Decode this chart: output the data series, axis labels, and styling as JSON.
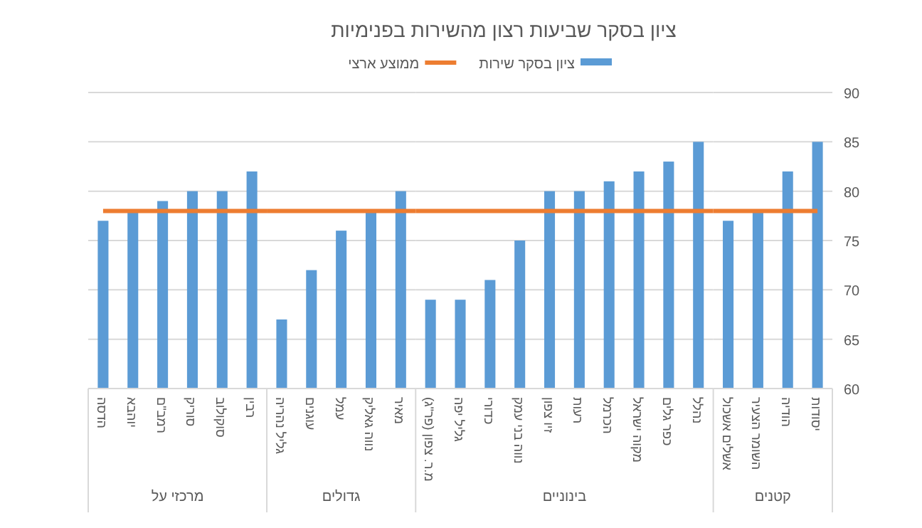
{
  "chart_data": [
    {
      "type": "bar",
      "xlabel": "מרכזי על",
      "grid": "y",
      "tick_labels": "x",
      "ylim": [
        60,
        90
      ],
      "yticks": [
        60,
        65,
        70,
        75,
        80,
        85,
        90
      ],
      "categories": [
        "הדסה",
        "יוהבא",
        "רמב\"ם",
        "סוריק",
        "סוקולוב",
        "רבין"
      ],
      "series": [
        {
          "color": "#5b9bd5",
          "values": [
            77,
            78,
            79,
            80,
            80,
            82
          ]
        }
      ],
      "ref_lines": [
        {
          "axis": "y",
          "value": 78,
          "color": "#ed7d31"
        }
      ]
    },
    {
      "type": "bar",
      "xlabel": "גדולים",
      "grid": "y",
      "tick_labels": "x",
      "ylim": [
        60,
        90
      ],
      "yticks": [
        60,
        65,
        70,
        75,
        80,
        85,
        90
      ],
      "categories": [
        "גליל נהריה",
        "עוגנים",
        "עמל",
        "נווה גאליק",
        "מאיר"
      ],
      "series": [
        {
          "color": "#5b9bd5",
          "values": [
            67,
            72,
            76,
            78,
            80
          ]
        }
      ],
      "ref_lines": [
        {
          "axis": "y",
          "value": 78,
          "color": "#ed7d31"
        }
      ]
    },
    {
      "type": "bar",
      "title": "ציון בסקר שביעות רצון מהשירות בפנימיות",
      "xlabel": "בינוניים",
      "legend": "top",
      "grid": "y",
      "tick_labels": "x",
      "ylim": [
        60,
        90
      ],
      "yticks": [
        60,
        65,
        70,
        75,
        80,
        85,
        90
      ],
      "categories": [
        "מ.ר. צפון (פר\"ג)",
        "גליל יפה",
        "כדורי",
        "נווה בני עמק",
        "זיו צפון",
        "רעות",
        "הכרמל",
        "מקוה ישראל",
        "כפר גלים",
        "נהלל"
      ],
      "series": [
        {
          "name": "ציון בסקר שירות",
          "color": "#5b9bd5",
          "values": [
            69,
            69,
            71,
            75,
            80,
            80,
            81,
            82,
            83,
            85
          ]
        }
      ],
      "ref_lines": [
        {
          "axis": "y",
          "value": 78,
          "label": "ממוצע ארצי",
          "color": "#ed7d31"
        }
      ]
    },
    {
      "type": "bar",
      "xlabel": "קטנים",
      "grid": "y",
      "ylim": [
        60,
        90
      ],
      "yticks": [
        60,
        65,
        70,
        75,
        80,
        85,
        90
      ],
      "categories": [
        "אשלים אשכול",
        "השומר הצעיר",
        "הודיה",
        "יסודות"
      ],
      "series": [
        {
          "color": "#5b9bd5",
          "values": [
            77,
            78,
            82,
            85
          ]
        }
      ],
      "ref_lines": [
        {
          "axis": "y",
          "value": 78,
          "color": "#ed7d31"
        }
      ]
    }
  ]
}
